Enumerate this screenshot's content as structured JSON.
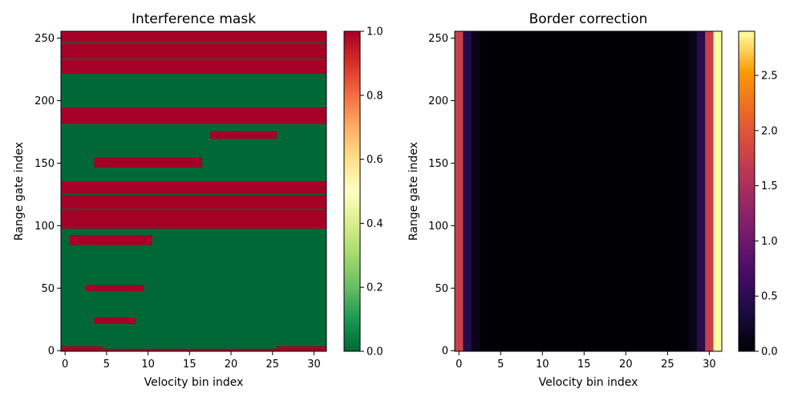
{
  "chart_data": [
    {
      "type": "heatmap",
      "title": "Interference mask",
      "xlabel": "Velocity bin index",
      "ylabel": "Range gate index",
      "x_range": [
        -0.5,
        31.5
      ],
      "y_range": [
        -0.5,
        255.5
      ],
      "x_ticks": [
        "0",
        "5",
        "10",
        "15",
        "20",
        "25",
        "30"
      ],
      "y_ticks": [
        "0",
        "50",
        "100",
        "150",
        "200",
        "250"
      ],
      "colormap": "RdYlGn_r",
      "colorbar": {
        "min": 0.0,
        "max": 1.0,
        "ticks": [
          "0.0",
          "0.2",
          "0.4",
          "0.6",
          "0.8",
          "1.0"
        ]
      },
      "colors": {
        "zero": "#006837",
        "one": "#a50026"
      },
      "interference_regions": [
        {
          "x": [
            0,
            31
          ],
          "y": [
            0,
            1
          ]
        },
        {
          "x": [
            0,
            4
          ],
          "y": [
            2,
            3
          ]
        },
        {
          "x": [
            26,
            31
          ],
          "y": [
            2,
            3
          ]
        },
        {
          "x": [
            4,
            8
          ],
          "y": [
            22,
            26
          ]
        },
        {
          "x": [
            3,
            9
          ],
          "y": [
            48,
            52
          ]
        },
        {
          "x": [
            1,
            10
          ],
          "y": [
            85,
            92
          ]
        },
        {
          "x": [
            0,
            31
          ],
          "y": [
            98,
            112
          ]
        },
        {
          "x": [
            0,
            31
          ],
          "y": [
            114,
            124
          ]
        },
        {
          "x": [
            0,
            31
          ],
          "y": [
            126,
            135
          ]
        },
        {
          "x": [
            4,
            16
          ],
          "y": [
            147,
            154
          ]
        },
        {
          "x": [
            18,
            25
          ],
          "y": [
            170,
            175
          ]
        },
        {
          "x": [
            0,
            31
          ],
          "y": [
            182,
            194
          ]
        },
        {
          "x": [
            0,
            31
          ],
          "y": [
            222,
            232
          ]
        },
        {
          "x": [
            0,
            31
          ],
          "y": [
            234,
            245
          ]
        },
        {
          "x": [
            0,
            31
          ],
          "y": [
            247,
            255
          ]
        }
      ]
    },
    {
      "type": "heatmap",
      "title": "Border correction",
      "xlabel": "Velocity bin index",
      "ylabel": "Range gate index",
      "x_range": [
        -0.5,
        31.5
      ],
      "y_range": [
        -0.5,
        255.5
      ],
      "x_ticks": [
        "0",
        "5",
        "10",
        "15",
        "20",
        "25",
        "30"
      ],
      "y_ticks": [
        "0",
        "50",
        "100",
        "150",
        "200",
        "250"
      ],
      "colormap": "inferno",
      "colorbar": {
        "min": 0.0,
        "max": 2.9,
        "ticks": [
          "0.0",
          "0.5",
          "1.0",
          "1.5",
          "2.0",
          "2.5"
        ]
      },
      "column_values": [
        1.75,
        0.45,
        0.12,
        0.03,
        0.01,
        0.0,
        0.0,
        0.0,
        0.0,
        0.0,
        0.0,
        0.0,
        0.0,
        0.0,
        0.0,
        0.0,
        0.0,
        0.0,
        0.0,
        0.0,
        0.0,
        0.0,
        0.0,
        0.0,
        0.0,
        0.0,
        0.01,
        0.03,
        0.12,
        0.45,
        1.75,
        2.9
      ]
    }
  ]
}
